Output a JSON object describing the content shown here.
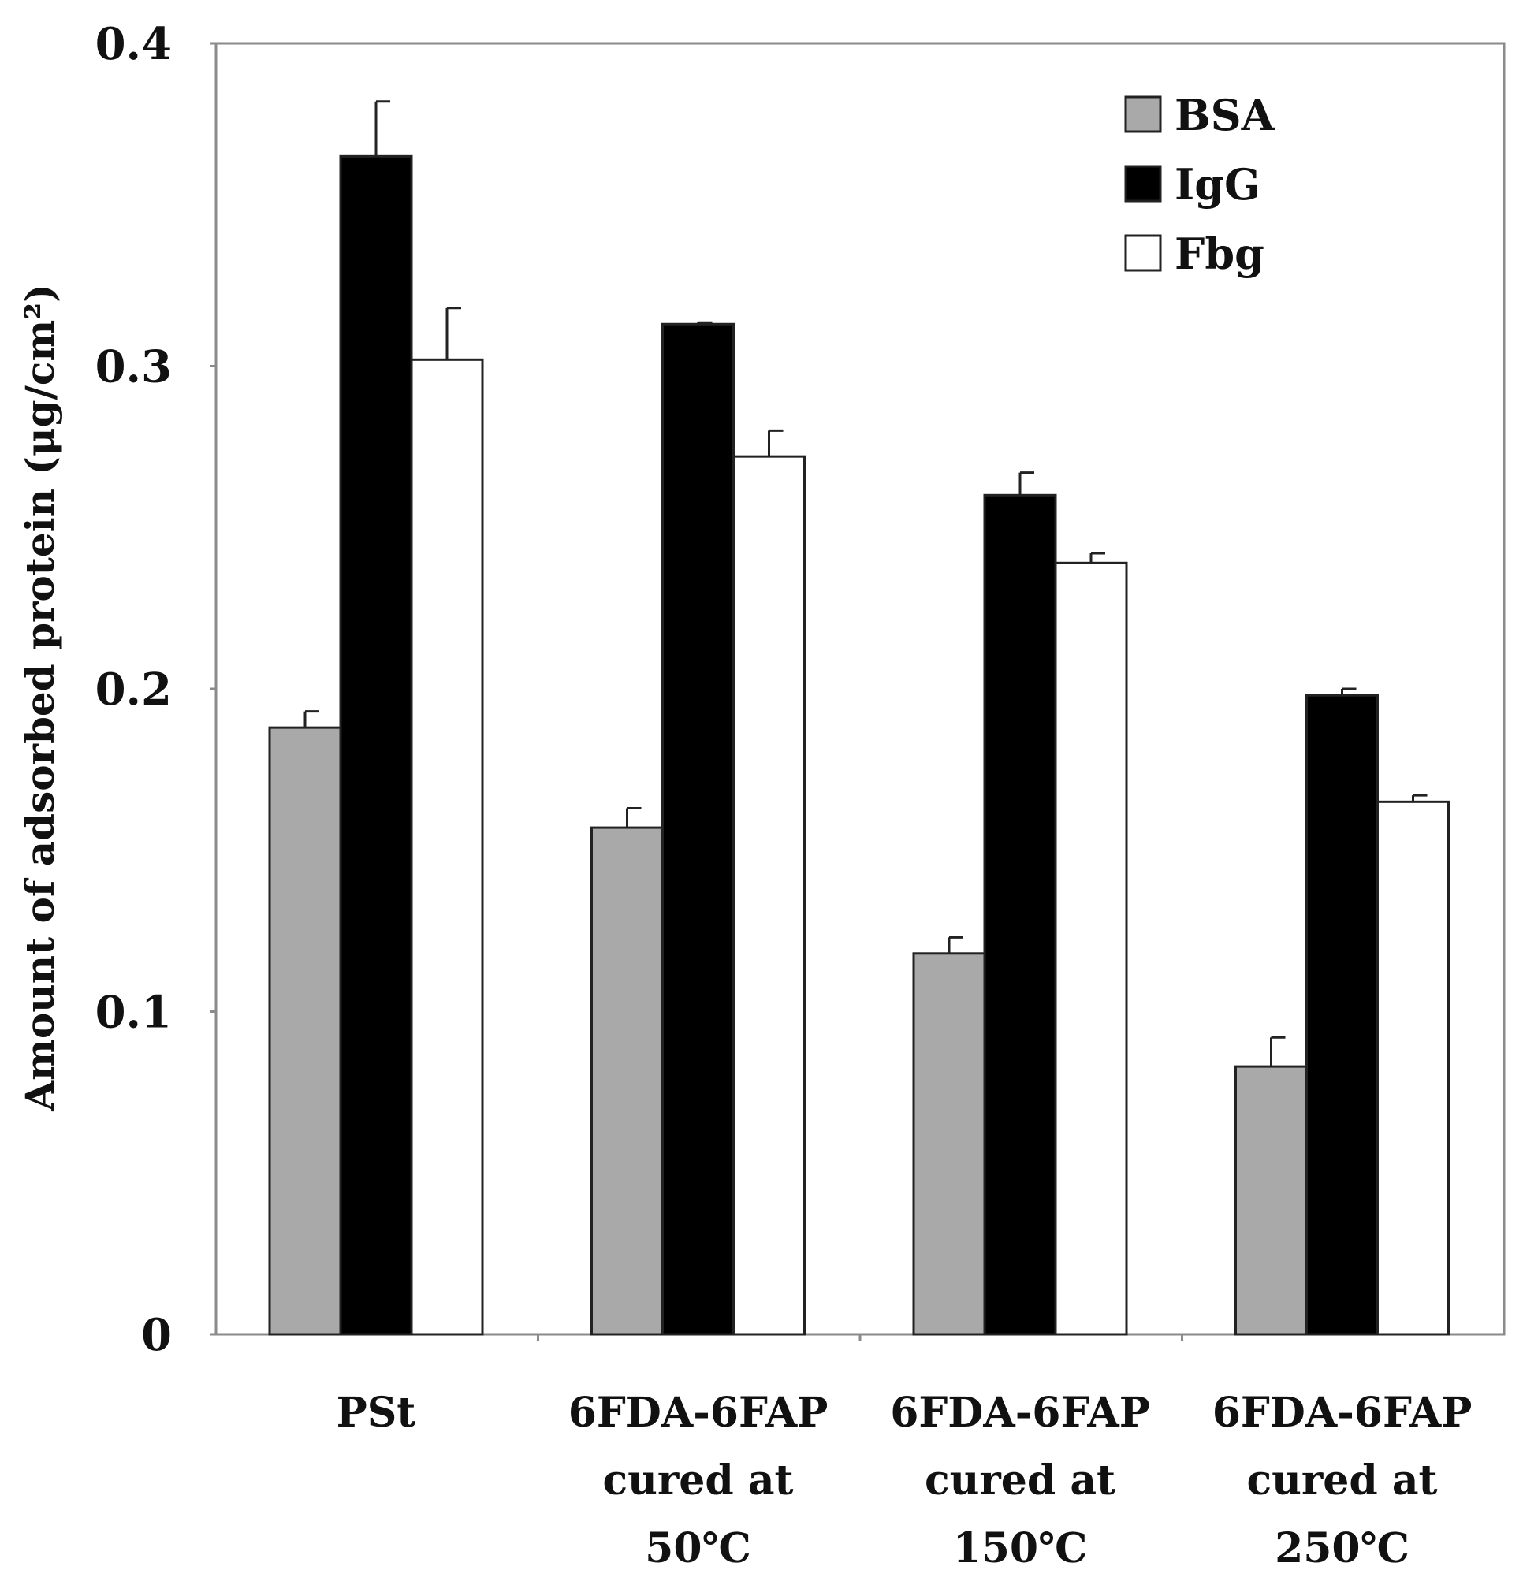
{
  "chart_data": {
    "type": "bar",
    "title": "",
    "xlabel": "",
    "ylabel": "Amount of adsorbed protein (μg/cm²)",
    "ylim": [
      0,
      0.4
    ],
    "yticks": [
      "0",
      "0.1",
      "0.2",
      "0.3",
      "0.4"
    ],
    "categories": [
      [
        "PSt"
      ],
      [
        "6FDA-6FAP",
        "cured at",
        "50℃"
      ],
      [
        "6FDA-6FAP",
        "cured at",
        "150℃"
      ],
      [
        "6FDA-6FAP",
        "cured at",
        "250℃"
      ]
    ],
    "series": [
      {
        "name": "BSA",
        "color": "#a9a9a9",
        "values": [
          0.188,
          0.157,
          0.118,
          0.083
        ],
        "errors": [
          0.005,
          0.006,
          0.005,
          0.009
        ]
      },
      {
        "name": "IgG",
        "color": "#000000",
        "values": [
          0.365,
          0.313,
          0.26,
          0.198
        ],
        "errors": [
          0.017,
          0.0005,
          0.007,
          0.002
        ]
      },
      {
        "name": "Fbg",
        "color": "#ffffff",
        "values": [
          0.302,
          0.272,
          0.239,
          0.165
        ],
        "errors": [
          0.016,
          0.008,
          0.003,
          0.002
        ]
      }
    ],
    "legend_position": "top-right",
    "grid": false
  }
}
